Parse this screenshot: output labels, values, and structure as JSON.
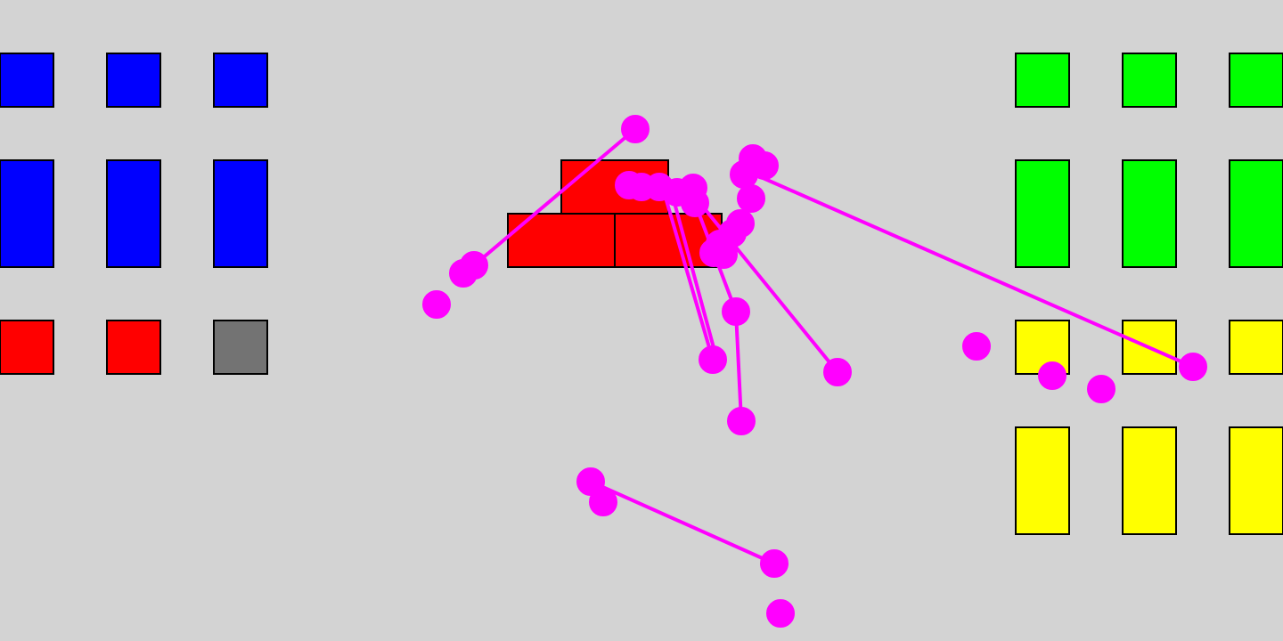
{
  "colors": {
    "background": "#d3d3d3",
    "blue": "#0000ff",
    "red": "#ff0000",
    "gray": "#737373",
    "green": "#00ff00",
    "yellow": "#ffff00",
    "trace": "#ff00ff",
    "outline": "#000000"
  },
  "palette_left": {
    "tiles": [
      {
        "id": "blue-small-1",
        "color": "blue"
      },
      {
        "id": "blue-small-2",
        "color": "blue"
      },
      {
        "id": "blue-small-3",
        "color": "blue"
      },
      {
        "id": "blue-tall-1",
        "color": "blue"
      },
      {
        "id": "blue-tall-2",
        "color": "blue"
      },
      {
        "id": "blue-tall-3",
        "color": "blue"
      },
      {
        "id": "red-small-1",
        "color": "red"
      },
      {
        "id": "red-small-2",
        "color": "red"
      },
      {
        "id": "gray-small-1",
        "color": "gray"
      }
    ]
  },
  "palette_right": {
    "tiles": [
      {
        "id": "green-small-1",
        "color": "green"
      },
      {
        "id": "green-small-2",
        "color": "green"
      },
      {
        "id": "green-small-3",
        "color": "green"
      },
      {
        "id": "green-tall-1",
        "color": "green"
      },
      {
        "id": "green-tall-2",
        "color": "green"
      },
      {
        "id": "green-tall-3",
        "color": "green"
      },
      {
        "id": "yellow-small-1",
        "color": "yellow"
      },
      {
        "id": "yellow-small-2",
        "color": "yellow"
      },
      {
        "id": "yellow-small-3",
        "color": "yellow"
      },
      {
        "id": "yellow-tall-1",
        "color": "yellow"
      },
      {
        "id": "yellow-tall-2",
        "color": "yellow"
      },
      {
        "id": "yellow-tall-3",
        "color": "yellow"
      }
    ]
  },
  "structure": {
    "blocks": [
      {
        "id": "top-block",
        "color": "red"
      },
      {
        "id": "bottom-left-block",
        "color": "red"
      },
      {
        "id": "bottom-right-block",
        "color": "red"
      }
    ]
  }
}
